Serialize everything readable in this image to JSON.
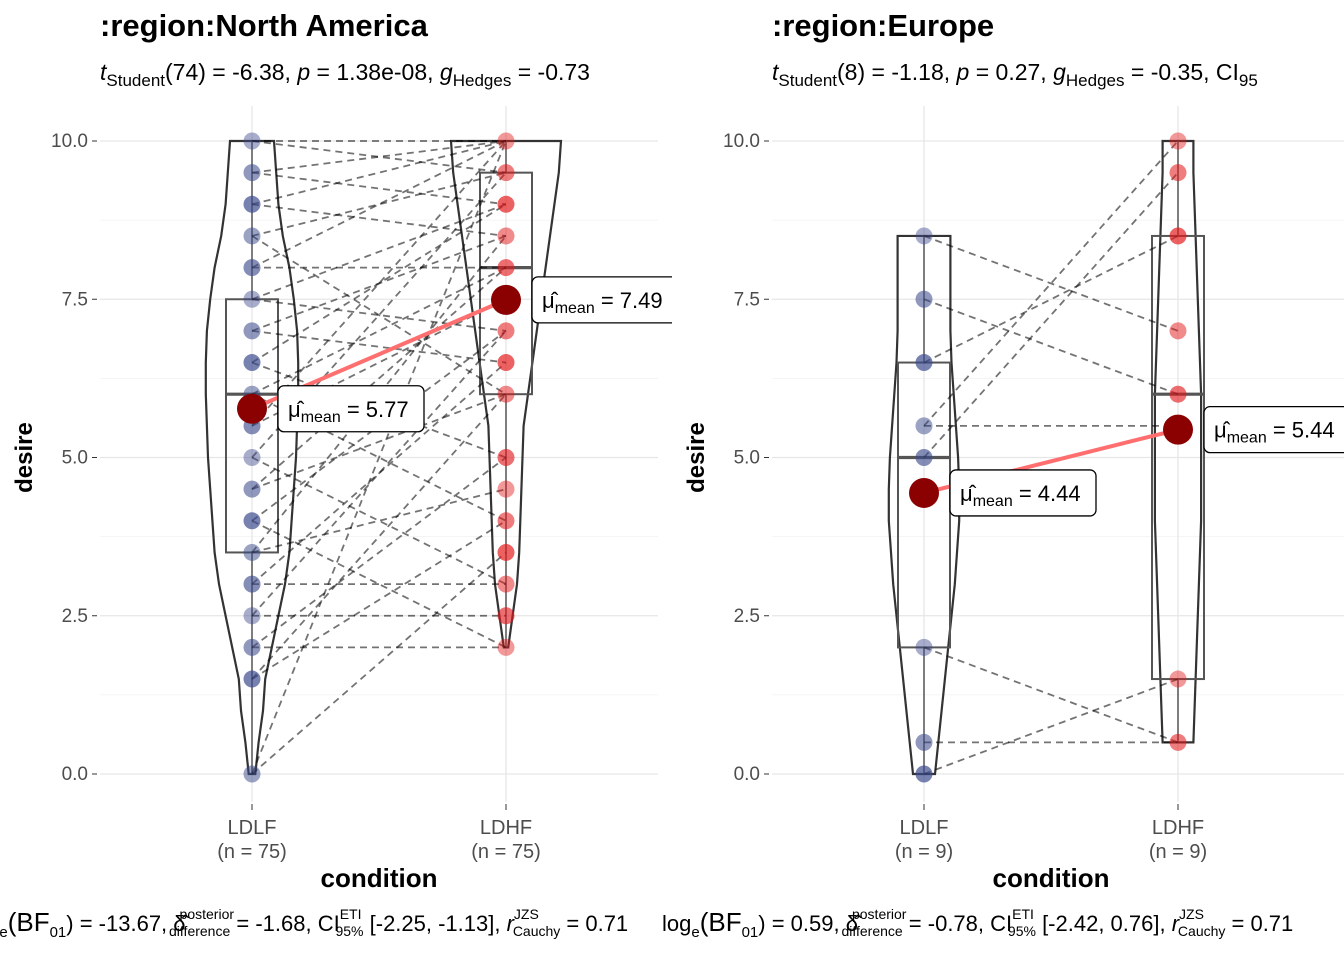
{
  "chart_data": [
    {
      "type": "violin-box-paired",
      "title": ":region:North America",
      "subtitle_parts": {
        "stat_sym": "t",
        "stat_sub": "Student",
        "stat_df": "(74) = -6.38, ",
        "p_sym": "p",
        "p_val": " = 1.38e-08, ",
        "es_sym": "g",
        "es_sub": "Hedges",
        "es_val": " = -0.73"
      },
      "xlabel": "condition",
      "ylabel": "desire",
      "ylim": [
        0,
        10
      ],
      "yticks": [
        "0.0",
        "2.5",
        "5.0",
        "7.5",
        "10.0"
      ],
      "categories": [
        {
          "label": "LDLF",
          "n": "(n = 75)"
        },
        {
          "label": "LDHF",
          "n": "(n = 75)"
        }
      ],
      "groups": [
        {
          "color": "#3b4a8c",
          "points": [
            10,
            9.5,
            9,
            8.5,
            8,
            7.5,
            7,
            6.5,
            6,
            5.5,
            5,
            4.5,
            4,
            3.5,
            3,
            2.5,
            2,
            1.5,
            0
          ],
          "box": {
            "q1": 3.5,
            "median": 6.0,
            "q3": 7.5,
            "whisker_low": 0,
            "whisker_high": 10
          },
          "mean": 5.77,
          "mean_label_sub": "mean",
          "mean_label_val": " = 5.77",
          "violin": [
            [
              0,
              0.03
            ],
            [
              0.5,
              0.06
            ],
            [
              1,
              0.1
            ],
            [
              1.5,
              0.12
            ],
            [
              2,
              0.18
            ],
            [
              2.5,
              0.24
            ],
            [
              3,
              0.3
            ],
            [
              3.5,
              0.34
            ],
            [
              4,
              0.36
            ],
            [
              4.5,
              0.38
            ],
            [
              5,
              0.4
            ],
            [
              5.5,
              0.41
            ],
            [
              6,
              0.42
            ],
            [
              6.5,
              0.42
            ],
            [
              7,
              0.41
            ],
            [
              7.5,
              0.38
            ],
            [
              8,
              0.34
            ],
            [
              8.5,
              0.28
            ],
            [
              9,
              0.24
            ],
            [
              9.5,
              0.22
            ],
            [
              10,
              0.2
            ]
          ]
        },
        {
          "color": "#e31a1c",
          "points": [
            10,
            9.5,
            9,
            8.5,
            8,
            7.5,
            7,
            6.5,
            6,
            5,
            4.5,
            4,
            3.5,
            3,
            2.5,
            2
          ],
          "box": {
            "q1": 6.0,
            "median": 8.0,
            "q3": 9.5,
            "whisker_low": 2,
            "whisker_high": 10
          },
          "mean": 7.49,
          "mean_label_sub": "mean",
          "mean_label_val": " = 7.49",
          "violin": [
            [
              2,
              0.02
            ],
            [
              2.5,
              0.06
            ],
            [
              3,
              0.1
            ],
            [
              3.5,
              0.12
            ],
            [
              4,
              0.13
            ],
            [
              4.5,
              0.14
            ],
            [
              5,
              0.15
            ],
            [
              5.5,
              0.16
            ],
            [
              6,
              0.2
            ],
            [
              6.5,
              0.24
            ],
            [
              7,
              0.28
            ],
            [
              7.5,
              0.32
            ],
            [
              8,
              0.36
            ],
            [
              8.5,
              0.4
            ],
            [
              9,
              0.44
            ],
            [
              9.5,
              0.48
            ],
            [
              10,
              0.5
            ]
          ]
        }
      ],
      "pairs": [
        [
          10,
          10
        ],
        [
          10,
          9.5
        ],
        [
          9.5,
          10
        ],
        [
          9.5,
          9
        ],
        [
          9,
          10
        ],
        [
          9,
          8.5
        ],
        [
          8.5,
          9.5
        ],
        [
          8.5,
          6
        ],
        [
          8,
          8
        ],
        [
          8,
          10
        ],
        [
          7.5,
          9
        ],
        [
          7.5,
          7
        ],
        [
          7,
          8.5
        ],
        [
          7,
          6.5
        ],
        [
          6.5,
          9
        ],
        [
          6.5,
          5
        ],
        [
          6,
          8
        ],
        [
          6,
          4
        ],
        [
          5.5,
          7.5
        ],
        [
          5.5,
          10
        ],
        [
          5,
          9.5
        ],
        [
          5,
          3
        ],
        [
          4.5,
          8
        ],
        [
          4.5,
          6
        ],
        [
          4,
          7
        ],
        [
          4,
          2
        ],
        [
          3.5,
          8.5
        ],
        [
          3.5,
          4.5
        ],
        [
          3,
          6.5
        ],
        [
          3,
          3
        ],
        [
          2.5,
          7
        ],
        [
          2.5,
          2.5
        ],
        [
          2,
          5
        ],
        [
          2,
          2
        ],
        [
          1.5,
          6
        ],
        [
          1.5,
          4
        ],
        [
          0,
          10
        ],
        [
          0,
          3.5
        ]
      ],
      "footer_parts": {
        "prefix": "log",
        "log_sub": "e",
        "bf": "(BF",
        "bf_sub": "01",
        "bf_val": ") = -13.67, ",
        "delta_sup": "posterior",
        "delta_sub": "difference",
        "delta_val": " = -1.68, ",
        "ci": "CI",
        "ci_sup": "ETI",
        "ci_sub": "95%",
        "ci_val": " [-2.25, -1.13], ",
        "r_sym": "r",
        "r_sup": "JZS",
        "r_sub": "Cauchy",
        "r_val": " = 0.71"
      }
    },
    {
      "type": "violin-box-paired",
      "title": ":region:Europe",
      "subtitle_parts": {
        "stat_sym": "t",
        "stat_sub": "Student",
        "stat_df": "(8) = -1.18, ",
        "p_sym": "p",
        "p_val": " = 0.27, ",
        "es_sym": "g",
        "es_sub": "Hedges",
        "es_val": " = -0.35, ",
        "ci": "CI",
        "ci_sub": "95"
      },
      "xlabel": "condition",
      "ylabel": "desire",
      "ylim": [
        0,
        10
      ],
      "yticks": [
        "0.0",
        "2.5",
        "5.0",
        "7.5",
        "10.0"
      ],
      "categories": [
        {
          "label": "LDLF",
          "n": "(n = 9)"
        },
        {
          "label": "LDHF",
          "n": "(n = 9)"
        }
      ],
      "groups": [
        {
          "color": "#3b4a8c",
          "points": [
            8.5,
            7.5,
            6.5,
            5.5,
            5,
            2,
            0.5,
            0
          ],
          "box": {
            "q1": 2.0,
            "median": 5.0,
            "q3": 6.5,
            "whisker_low": 0,
            "whisker_high": 8.5
          },
          "mean": 4.44,
          "mean_label_sub": "mean",
          "mean_label_val": " = 4.44",
          "violin": [
            [
              0,
              0.1
            ],
            [
              0.5,
              0.13
            ],
            [
              1,
              0.16
            ],
            [
              1.5,
              0.19
            ],
            [
              2,
              0.22
            ],
            [
              2.5,
              0.25
            ],
            [
              3,
              0.28
            ],
            [
              3.5,
              0.3
            ],
            [
              4,
              0.32
            ],
            [
              4.5,
              0.32
            ],
            [
              5,
              0.31
            ],
            [
              5.5,
              0.29
            ],
            [
              6,
              0.27
            ],
            [
              6.5,
              0.25
            ],
            [
              7,
              0.24
            ],
            [
              7.5,
              0.24
            ],
            [
              8,
              0.24
            ],
            [
              8.5,
              0.24
            ]
          ]
        },
        {
          "color": "#e31a1c",
          "points": [
            10,
            9.5,
            8.5,
            7,
            6,
            1.5,
            0.5
          ],
          "box": {
            "q1": 1.5,
            "median": 6.0,
            "q3": 8.5,
            "whisker_low": 0.5,
            "whisker_high": 10
          },
          "mean": 5.44,
          "mean_label_sub": "mean",
          "mean_label_val": " = 5.44",
          "violin": [
            [
              0.5,
              0.14
            ],
            [
              1,
              0.15
            ],
            [
              1.5,
              0.16
            ],
            [
              2,
              0.17
            ],
            [
              2.5,
              0.18
            ],
            [
              3,
              0.19
            ],
            [
              3.5,
              0.2
            ],
            [
              4,
              0.21
            ],
            [
              4.5,
              0.21
            ],
            [
              5,
              0.21
            ],
            [
              5.5,
              0.21
            ],
            [
              6,
              0.21
            ],
            [
              6.5,
              0.2
            ],
            [
              7,
              0.19
            ],
            [
              7.5,
              0.18
            ],
            [
              8,
              0.17
            ],
            [
              8.5,
              0.16
            ],
            [
              9,
              0.15
            ],
            [
              9.5,
              0.14
            ],
            [
              10,
              0.14
            ]
          ]
        }
      ],
      "pairs": [
        [
          8.5,
          7
        ],
        [
          7.5,
          6
        ],
        [
          6.5,
          8.5
        ],
        [
          5.5,
          5.5
        ],
        [
          5,
          9.5
        ],
        [
          2,
          0.5
        ],
        [
          0.5,
          0.5
        ],
        [
          0,
          1.5
        ],
        [
          5.5,
          10
        ]
      ],
      "footer_parts": {
        "prefix": "log",
        "log_sub": "e",
        "bf": "(BF",
        "bf_sub": "01",
        "bf_val": ") = 0.59, ",
        "delta_sup": "posterior",
        "delta_sub": "difference",
        "delta_val": " = -0.78, ",
        "ci": "CI",
        "ci_sup": "ETI",
        "ci_sub": "95%",
        "ci_val": " [-2.42, 0.76], ",
        "r_sym": "r",
        "r_sup": "JZS",
        "r_sub": "Cauchy",
        "r_val": " = 0.71"
      }
    }
  ]
}
